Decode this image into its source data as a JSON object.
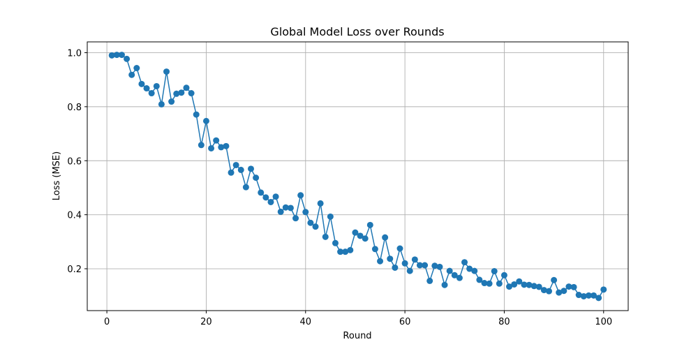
{
  "chart_data": {
    "type": "line",
    "title": "Global Model Loss over Rounds",
    "xlabel": "Round",
    "ylabel": "Loss (MSE)",
    "xlim": [
      -3.95,
      104.95
    ],
    "ylim": [
      0.045,
      1.04
    ],
    "xticks": [
      0,
      20,
      40,
      60,
      80,
      100
    ],
    "yticks": [
      0.2,
      0.4,
      0.6,
      0.8,
      1.0
    ],
    "ytick_labels": [
      "0.2",
      "0.4",
      "0.6",
      "0.8",
      "1.0"
    ],
    "grid": true,
    "marker": "circle",
    "series": [
      {
        "color": "#1f77b4",
        "x": [
          1,
          2,
          3,
          4,
          5,
          6,
          7,
          8,
          9,
          10,
          11,
          12,
          13,
          14,
          15,
          16,
          17,
          18,
          19,
          20,
          21,
          22,
          23,
          24,
          25,
          26,
          27,
          28,
          29,
          30,
          31,
          32,
          33,
          34,
          35,
          36,
          37,
          38,
          39,
          40,
          41,
          42,
          43,
          44,
          45,
          46,
          47,
          48,
          49,
          50,
          51,
          52,
          53,
          54,
          55,
          56,
          57,
          58,
          59,
          60,
          61,
          62,
          63,
          64,
          65,
          66,
          67,
          68,
          69,
          70,
          71,
          72,
          73,
          74,
          75,
          76,
          77,
          78,
          79,
          80,
          81,
          82,
          83,
          84,
          85,
          86,
          87,
          88,
          89,
          90,
          91,
          92,
          93,
          94,
          95,
          96,
          97,
          98,
          99,
          100
        ],
        "values": [
          0.99,
          0.992,
          0.992,
          0.977,
          0.918,
          0.943,
          0.884,
          0.868,
          0.85,
          0.876,
          0.809,
          0.93,
          0.819,
          0.848,
          0.852,
          0.87,
          0.85,
          0.771,
          0.658,
          0.747,
          0.646,
          0.675,
          0.65,
          0.654,
          0.556,
          0.584,
          0.566,
          0.502,
          0.57,
          0.537,
          0.482,
          0.464,
          0.447,
          0.467,
          0.411,
          0.427,
          0.425,
          0.387,
          0.472,
          0.41,
          0.37,
          0.356,
          0.442,
          0.318,
          0.393,
          0.295,
          0.263,
          0.263,
          0.269,
          0.334,
          0.322,
          0.312,
          0.362,
          0.273,
          0.228,
          0.316,
          0.237,
          0.204,
          0.275,
          0.22,
          0.192,
          0.234,
          0.213,
          0.213,
          0.155,
          0.211,
          0.207,
          0.14,
          0.192,
          0.176,
          0.166,
          0.224,
          0.2,
          0.192,
          0.159,
          0.147,
          0.145,
          0.191,
          0.145,
          0.176,
          0.134,
          0.142,
          0.153,
          0.141,
          0.14,
          0.136,
          0.133,
          0.121,
          0.117,
          0.158,
          0.112,
          0.118,
          0.134,
          0.132,
          0.103,
          0.098,
          0.101,
          0.101,
          0.092,
          0.123
        ]
      }
    ]
  }
}
